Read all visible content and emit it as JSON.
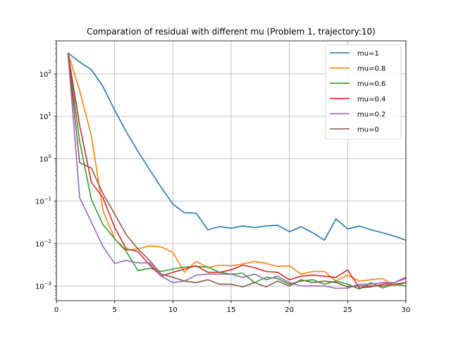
{
  "chart_data": {
    "type": "line",
    "title": "Comparation of residual with different mu (Problem 1, trajectory:10)",
    "xlabel": "",
    "ylabel": "",
    "xlim": [
      0,
      30
    ],
    "ylim": [
      0.00045,
      600
    ],
    "yscale": "log",
    "grid": true,
    "legend_position": "top-right",
    "x_ticks": [
      0,
      5,
      10,
      15,
      20,
      25,
      30
    ],
    "x_tick_labels": [
      "0",
      "5",
      "10",
      "15",
      "20",
      "25",
      "30"
    ],
    "y_ticks": [
      0.001,
      0.01,
      0.1,
      1,
      10,
      100
    ],
    "y_tick_labels": [
      {
        "base": "10",
        "exp": "−3"
      },
      {
        "base": "10",
        "exp": "−2"
      },
      {
        "base": "10",
        "exp": "−1"
      },
      {
        "base": "10",
        "exp": "0"
      },
      {
        "base": "10",
        "exp": "1"
      },
      {
        "base": "10",
        "exp": "2"
      }
    ],
    "x": [
      1,
      2,
      3,
      4,
      5,
      6,
      7,
      8,
      9,
      10,
      11,
      12,
      13,
      14,
      15,
      16,
      17,
      18,
      19,
      20,
      21,
      22,
      23,
      24,
      25,
      26,
      27,
      28,
      29,
      30
    ],
    "series": [
      {
        "name": "mu=1",
        "color": "#1f77b4",
        "values": [
          310,
          190,
          125,
          50,
          14,
          4.3,
          1.5,
          0.55,
          0.21,
          0.085,
          0.053,
          0.052,
          0.021,
          0.025,
          0.023,
          0.026,
          0.024,
          0.026,
          0.027,
          0.019,
          0.025,
          0.018,
          0.012,
          0.038,
          0.022,
          0.026,
          0.021,
          0.018,
          0.015,
          0.012
        ]
      },
      {
        "name": "mu=0.8",
        "color": "#ff7f0e",
        "values": [
          310,
          40,
          3.5,
          0.06,
          0.013,
          0.007,
          0.0075,
          0.0088,
          0.0083,
          0.0062,
          0.0021,
          0.0038,
          0.0027,
          0.0031,
          0.003,
          0.0033,
          0.0038,
          0.0034,
          0.0029,
          0.003,
          0.0019,
          0.0022,
          0.0022,
          0.0013,
          0.0018,
          0.0013,
          0.0014,
          0.0015,
          0.001,
          0.0012
        ]
      },
      {
        "name": "mu=0.6",
        "color": "#2ca02c",
        "values": [
          310,
          2.5,
          0.11,
          0.028,
          0.013,
          0.0065,
          0.0023,
          0.0026,
          0.0022,
          0.0025,
          0.0028,
          0.0029,
          0.0028,
          0.0021,
          0.0019,
          0.002,
          0.0012,
          0.0016,
          0.0015,
          0.0011,
          0.0013,
          0.0014,
          0.0011,
          0.0013,
          0.0011,
          0.00085,
          0.0012,
          0.0009,
          0.0011,
          0.001
        ]
      },
      {
        "name": "mu=0.4",
        "color": "#d62728",
        "values": [
          310,
          6,
          0.28,
          0.12,
          0.024,
          0.0075,
          0.0065,
          0.0031,
          0.0017,
          0.0021,
          0.0025,
          0.003,
          0.0021,
          0.0021,
          0.0024,
          0.0031,
          0.0027,
          0.0022,
          0.0021,
          0.0014,
          0.0017,
          0.0018,
          0.0017,
          0.0016,
          0.0024,
          0.0009,
          0.00095,
          0.0011,
          0.0012,
          0.0016
        ]
      },
      {
        "name": "mu=0.2",
        "color": "#9467bd",
        "values": [
          310,
          0.12,
          0.032,
          0.0085,
          0.0034,
          0.004,
          0.0035,
          0.0035,
          0.0017,
          0.0012,
          0.0013,
          0.0018,
          0.0019,
          0.0019,
          0.0019,
          0.0016,
          0.0019,
          0.0014,
          0.0017,
          0.0012,
          0.001,
          0.001,
          0.001,
          0.00088,
          0.00089,
          0.0011,
          0.0011,
          0.0012,
          0.0012,
          0.0015
        ]
      },
      {
        "name": "mu=0",
        "color": "#8c564b",
        "values": [
          310,
          0.8,
          0.6,
          0.15,
          0.05,
          0.016,
          0.0075,
          0.004,
          0.0019,
          0.0016,
          0.0013,
          0.0012,
          0.0014,
          0.0011,
          0.0011,
          0.00095,
          0.0012,
          0.00095,
          0.0013,
          0.001,
          0.0014,
          0.0012,
          0.0013,
          0.0012,
          0.00095,
          0.001,
          0.001,
          0.001,
          0.0011,
          0.0012
        ]
      }
    ]
  }
}
